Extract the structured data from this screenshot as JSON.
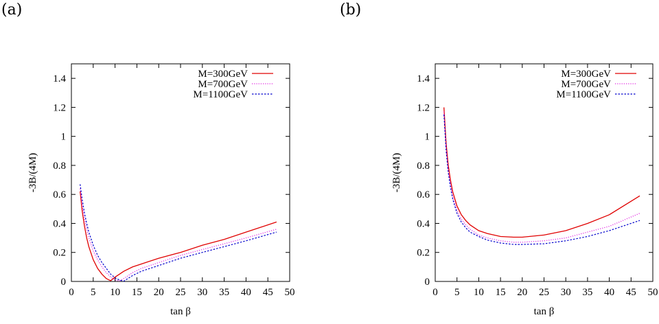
{
  "panels": [
    {
      "label": "(a)"
    },
    {
      "label": "(b)"
    }
  ],
  "chart_data": [
    {
      "type": "line",
      "title": "",
      "xlabel": "tan β",
      "ylabel": "-3B/(4M)",
      "xlim": [
        0,
        50
      ],
      "ylim": [
        0,
        1.5
      ],
      "xticks": [
        "0",
        "5",
        "10",
        "15",
        "20",
        "25",
        "30",
        "35",
        "40",
        "45",
        "50"
      ],
      "yticks": [
        "0",
        "0.2",
        "0.4",
        "0.6",
        "0.8",
        "1",
        "1.2",
        "1.4"
      ],
      "grid": false,
      "legend_position": "top-right",
      "series": [
        {
          "name": "M=300GeV",
          "color": "#e00000",
          "style": "solid",
          "x": [
            2,
            2.5,
            3,
            3.5,
            4,
            5,
            6,
            7,
            8,
            9,
            10,
            11,
            12,
            14,
            16,
            20,
            25,
            30,
            35,
            40,
            47
          ],
          "y": [
            0.62,
            0.48,
            0.38,
            0.3,
            0.24,
            0.15,
            0.09,
            0.05,
            0.02,
            0.005,
            0.03,
            0.05,
            0.07,
            0.1,
            0.12,
            0.16,
            0.2,
            0.25,
            0.29,
            0.34,
            0.41
          ]
        },
        {
          "name": "M=700GeV",
          "color": "#e020e0",
          "style": "dotted",
          "x": [
            2,
            2.5,
            3,
            3.5,
            4,
            5,
            6,
            7,
            8,
            9,
            10,
            11,
            12,
            14,
            16,
            20,
            25,
            30,
            35,
            40,
            47
          ],
          "y": [
            0.64,
            0.52,
            0.43,
            0.36,
            0.3,
            0.21,
            0.15,
            0.1,
            0.06,
            0.03,
            0.01,
            0.003,
            0.02,
            0.06,
            0.09,
            0.13,
            0.18,
            0.22,
            0.26,
            0.3,
            0.36
          ]
        },
        {
          "name": "M=1100GeV",
          "color": "#0000cc",
          "style": "dashed",
          "x": [
            2,
            2.5,
            3,
            3.5,
            4,
            5,
            6,
            7,
            8,
            9,
            10,
            11,
            12,
            14,
            16,
            20,
            25,
            30,
            35,
            40,
            47
          ],
          "y": [
            0.67,
            0.56,
            0.47,
            0.4,
            0.34,
            0.25,
            0.18,
            0.13,
            0.09,
            0.05,
            0.025,
            0.01,
            0.002,
            0.04,
            0.07,
            0.11,
            0.16,
            0.2,
            0.24,
            0.28,
            0.34
          ]
        }
      ]
    },
    {
      "type": "line",
      "title": "",
      "xlabel": "tan β",
      "ylabel": "-3B/(4M)",
      "xlim": [
        0,
        50
      ],
      "ylim": [
        0,
        1.5
      ],
      "xticks": [
        "0",
        "5",
        "10",
        "15",
        "20",
        "25",
        "30",
        "35",
        "40",
        "45",
        "50"
      ],
      "yticks": [
        "0",
        "0.2",
        "0.4",
        "0.6",
        "0.8",
        "1",
        "1.2",
        "1.4"
      ],
      "grid": false,
      "legend_position": "top-right",
      "series": [
        {
          "name": "M=300GeV",
          "color": "#e00000",
          "style": "solid",
          "x": [
            2,
            2.5,
            3,
            3.5,
            4,
            5,
            6,
            7,
            8,
            10,
            12,
            15,
            18,
            20,
            25,
            30,
            35,
            40,
            47
          ],
          "y": [
            1.2,
            0.95,
            0.8,
            0.7,
            0.62,
            0.52,
            0.46,
            0.42,
            0.39,
            0.35,
            0.33,
            0.31,
            0.305,
            0.305,
            0.32,
            0.35,
            0.4,
            0.46,
            0.59
          ]
        },
        {
          "name": "M=700GeV",
          "color": "#e020e0",
          "style": "dotted",
          "x": [
            2,
            2.5,
            3,
            3.5,
            4,
            5,
            6,
            7,
            8,
            10,
            12,
            15,
            18,
            20,
            25,
            30,
            35,
            40,
            47
          ],
          "y": [
            1.17,
            0.92,
            0.77,
            0.67,
            0.59,
            0.49,
            0.43,
            0.39,
            0.36,
            0.32,
            0.3,
            0.28,
            0.27,
            0.27,
            0.28,
            0.3,
            0.34,
            0.38,
            0.47
          ]
        },
        {
          "name": "M=1100GeV",
          "color": "#0000cc",
          "style": "dashed",
          "x": [
            2,
            2.5,
            3,
            3.5,
            4,
            5,
            6,
            7,
            8,
            10,
            12,
            15,
            18,
            20,
            25,
            30,
            35,
            40,
            47
          ],
          "y": [
            1.15,
            0.9,
            0.75,
            0.65,
            0.57,
            0.47,
            0.41,
            0.37,
            0.34,
            0.31,
            0.285,
            0.265,
            0.255,
            0.255,
            0.26,
            0.28,
            0.31,
            0.35,
            0.42
          ]
        }
      ]
    }
  ]
}
